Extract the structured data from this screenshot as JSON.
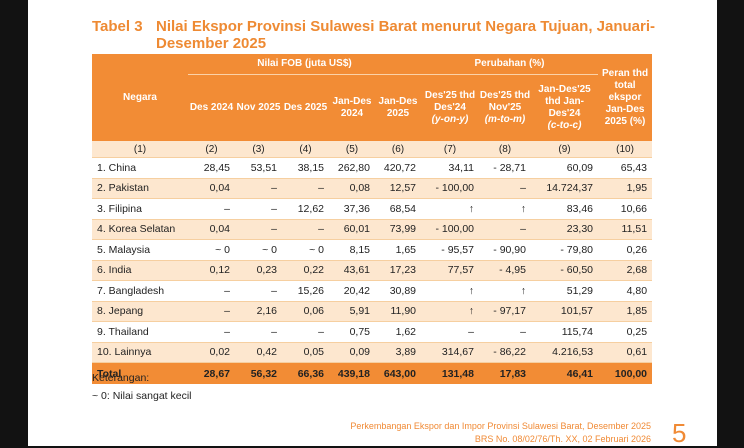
{
  "title": {
    "label": "Tabel 3",
    "text": "Nilai Ekspor Provinsi Sulawesi Barat menurut Negara Tujuan, Januari-Desember 2025"
  },
  "header": {
    "negara": "Negara",
    "fob_group": "Nilai FOB (juta US$)",
    "change_group": "Perubahan (%)",
    "share": "Peran thd total ekspor Jan-Des 2025 (%)",
    "fob_cols": [
      "Des 2024",
      "Nov 2025",
      "Des 2025",
      "Jan-Des 2024",
      "Jan-Des 2025"
    ],
    "change_cols": [
      {
        "label": "Des'25 thd Des'24",
        "note": "(y-on-y)"
      },
      {
        "label": "Des'25 thd Nov'25",
        "note": "(m-to-m)"
      },
      {
        "label": "Jan-Des'25 thd Jan-Des'24",
        "note": "(c-to-c)"
      }
    ],
    "col_numbers": [
      "(1)",
      "(2)",
      "(3)",
      "(4)",
      "(5)",
      "(6)",
      "(7)",
      "(8)",
      "(9)",
      "(10)"
    ]
  },
  "rows": [
    {
      "country": "1. China",
      "v": [
        "28,45",
        "53,51",
        "38,15",
        "262,80",
        "420,72",
        "34,11",
        "- 28,71",
        "60,09",
        "65,43"
      ]
    },
    {
      "country": "2. Pakistan",
      "v": [
        "0,04",
        "–",
        "–",
        "0,08",
        "12,57",
        "- 100,00",
        "–",
        "14.724,37",
        "1,95"
      ]
    },
    {
      "country": "3. Filipina",
      "v": [
        "–",
        "–",
        "12,62",
        "37,36",
        "68,54",
        "↑",
        "↑",
        "83,46",
        "10,66"
      ]
    },
    {
      "country": "4. Korea Selatan",
      "v": [
        "0,04",
        "–",
        "–",
        "60,01",
        "73,99",
        "- 100,00",
        "–",
        "23,30",
        "11,51"
      ]
    },
    {
      "country": "5. Malaysia",
      "v": [
        "~ 0",
        "~ 0",
        "~ 0",
        "8,15",
        "1,65",
        "- 95,57",
        "- 90,90",
        "- 79,80",
        "0,26"
      ]
    },
    {
      "country": "6. India",
      "v": [
        "0,12",
        "0,23",
        "0,22",
        "43,61",
        "17,23",
        "77,57",
        "- 4,95",
        "- 60,50",
        "2,68"
      ]
    },
    {
      "country": "7. Bangladesh",
      "v": [
        "–",
        "–",
        "15,26",
        "20,42",
        "30,89",
        "↑",
        "↑",
        "51,29",
        "4,80"
      ]
    },
    {
      "country": "8. Jepang",
      "v": [
        "–",
        "2,16",
        "0,06",
        "5,91",
        "11,90",
        "↑",
        "- 97,17",
        "101,57",
        "1,85"
      ]
    },
    {
      "country": "9. Thailand",
      "v": [
        "–",
        "–",
        "–",
        "0,75",
        "1,62",
        "–",
        "–",
        "115,74",
        "0,25"
      ]
    },
    {
      "country": "10. Lainnya",
      "v": [
        "0,02",
        "0,42",
        "0,05",
        "0,09",
        "3,89",
        "314,67",
        "- 86,22",
        "4.216,53",
        "0,61"
      ]
    }
  ],
  "total": {
    "label": "Total",
    "v": [
      "28,67",
      "56,32",
      "66,36",
      "439,18",
      "643,00",
      "131,48",
      "17,83",
      "46,41",
      "100,00"
    ]
  },
  "notes": {
    "heading": "Keterangan:",
    "item": "~ 0: Nilai sangat kecil"
  },
  "footer": {
    "line1": "Perkembangan Ekspor dan Impor Provinsi Sulawesi Barat, Desember 2025",
    "line2": "BRS No. 08/02/76/Th. XX, 02 Februari 2026",
    "page": "5"
  },
  "colors": {
    "accent": "#f28c35",
    "band": "#fde7cf"
  }
}
